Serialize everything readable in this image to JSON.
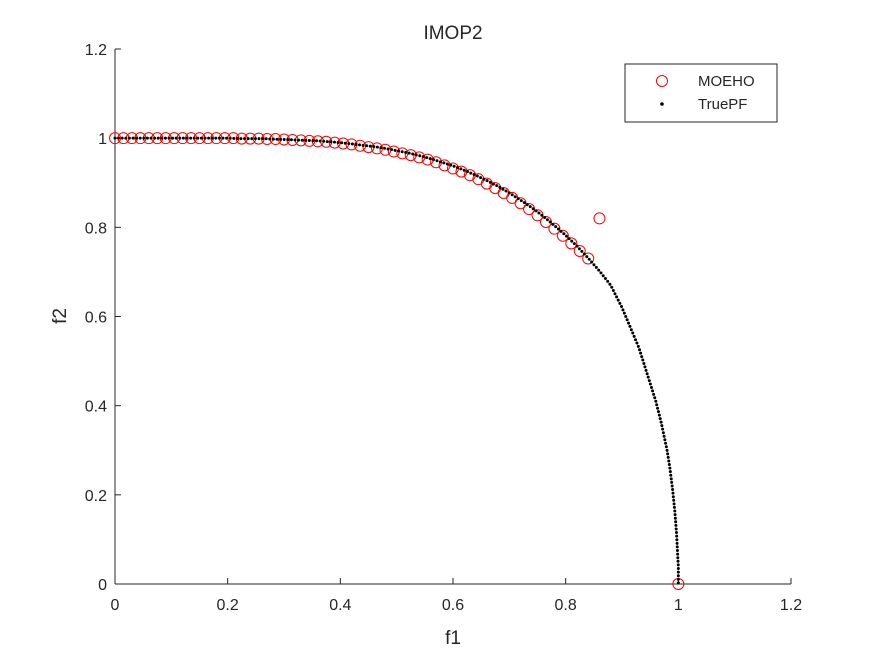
{
  "chart_data": {
    "type": "scatter",
    "title": "IMOP2",
    "xlabel": "f1",
    "ylabel": "f2",
    "xlim": [
      0,
      1.2
    ],
    "ylim": [
      0,
      1.2
    ],
    "xticks": [
      "0",
      "0.2",
      "0.4",
      "0.6",
      "0.8",
      "1",
      "1.2"
    ],
    "yticks": [
      "0",
      "0.2",
      "0.4",
      "0.6",
      "0.8",
      "1",
      "1.2"
    ],
    "grid": false,
    "legend_position": "top-right",
    "series": [
      {
        "name": "MOEHO",
        "marker": "open-circle",
        "color": "#ff0000",
        "x": [
          0,
          0.015,
          0.03,
          0.045,
          0.06,
          0.075,
          0.09,
          0.105,
          0.12,
          0.135,
          0.15,
          0.165,
          0.18,
          0.195,
          0.21,
          0.225,
          0.24,
          0.255,
          0.27,
          0.285,
          0.3,
          0.315,
          0.33,
          0.345,
          0.36,
          0.375,
          0.39,
          0.405,
          0.42,
          0.435,
          0.45,
          0.465,
          0.48,
          0.495,
          0.51,
          0.525,
          0.54,
          0.555,
          0.57,
          0.585,
          0.6,
          0.615,
          0.63,
          0.645,
          0.66,
          0.675,
          0.69,
          0.705,
          0.72,
          0.735,
          0.75,
          0.765,
          0.78,
          0.795,
          0.81,
          0.825,
          0.84,
          0.86,
          1.0
        ],
        "y": [
          1.0,
          1.0,
          1.0,
          1.0,
          1.0,
          1.0,
          1.0,
          1.0,
          1.0,
          1.0,
          1.0,
          1.0,
          1.0,
          1.0,
          1.0,
          0.999,
          0.999,
          0.999,
          0.998,
          0.998,
          0.997,
          0.996,
          0.995,
          0.994,
          0.993,
          0.992,
          0.99,
          0.988,
          0.986,
          0.983,
          0.98,
          0.977,
          0.974,
          0.97,
          0.966,
          0.962,
          0.957,
          0.952,
          0.946,
          0.939,
          0.932,
          0.925,
          0.917,
          0.908,
          0.898,
          0.888,
          0.877,
          0.866,
          0.854,
          0.841,
          0.827,
          0.812,
          0.797,
          0.781,
          0.764,
          0.747,
          0.73,
          0.82,
          0.0
        ]
      },
      {
        "name": "TruePF",
        "marker": "dot",
        "color": "#000000",
        "x": [
          0,
          0.02,
          0.04,
          0.06,
          0.08,
          0.1,
          0.12,
          0.14,
          0.16,
          0.18,
          0.2,
          0.22,
          0.24,
          0.26,
          0.28,
          0.3,
          0.32,
          0.34,
          0.36,
          0.38,
          0.4,
          0.42,
          0.44,
          0.46,
          0.48,
          0.5,
          0.52,
          0.54,
          0.56,
          0.58,
          0.6,
          0.62,
          0.64,
          0.66,
          0.68,
          0.7,
          0.72,
          0.74,
          0.76,
          0.78,
          0.8,
          0.82,
          0.84,
          0.86,
          0.88,
          0.9,
          0.91,
          0.92,
          0.93,
          0.94,
          0.95,
          0.96,
          0.97,
          0.975,
          0.98,
          0.985,
          0.99,
          0.994,
          0.997,
          0.999,
          1.0,
          1.0,
          1.0,
          1.0,
          1.0
        ],
        "y": [
          1.0,
          1.0,
          1.0,
          1.0,
          1.0,
          1.0,
          1.0,
          1.0,
          1.0,
          1.0,
          1.0,
          0.999,
          0.999,
          0.999,
          0.998,
          0.997,
          0.996,
          0.995,
          0.994,
          0.992,
          0.99,
          0.987,
          0.984,
          0.981,
          0.977,
          0.972,
          0.967,
          0.961,
          0.954,
          0.946,
          0.938,
          0.928,
          0.917,
          0.905,
          0.892,
          0.877,
          0.861,
          0.844,
          0.825,
          0.804,
          0.782,
          0.758,
          0.731,
          0.702,
          0.67,
          0.62,
          0.59,
          0.56,
          0.53,
          0.49,
          0.45,
          0.41,
          0.36,
          0.33,
          0.3,
          0.26,
          0.21,
          0.16,
          0.11,
          0.06,
          0.04,
          0.03,
          0.02,
          0.01,
          0.0
        ]
      }
    ]
  }
}
